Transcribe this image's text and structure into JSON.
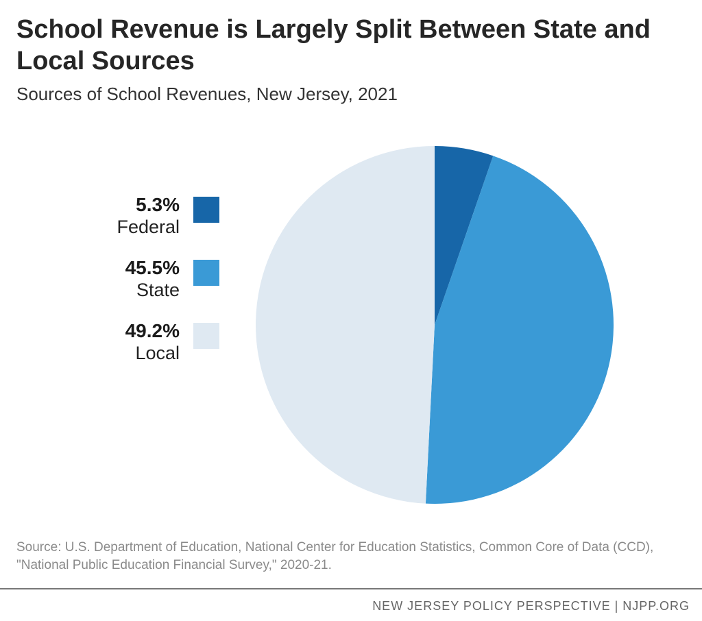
{
  "header": {
    "title": "School Revenue is Largely Split Between State and Local Sources",
    "subtitle": "Sources of School Revenues, New Jersey, 2021"
  },
  "chart_data": {
    "type": "pie",
    "title": "School Revenue is Largely Split Between State and Local Sources",
    "subtitle": "Sources of School Revenues, New Jersey, 2021",
    "legend_position": "left",
    "slices": [
      {
        "label": "Federal",
        "value": 5.3,
        "display": "5.3%",
        "color": "#1766a8"
      },
      {
        "label": "State",
        "value": 45.5,
        "display": "45.5%",
        "color": "#3a9ad6"
      },
      {
        "label": "Local",
        "value": 49.2,
        "display": "49.2%",
        "color": "#dfe9f2"
      }
    ]
  },
  "source": "Source: U.S. Department of Education, National Center for Education Statistics, Common Core of Data (CCD), \"National Public Education Financial Survey,\" 2020-21.",
  "footer": "NEW JERSEY POLICY PERSPECTIVE | NJPP.ORG"
}
